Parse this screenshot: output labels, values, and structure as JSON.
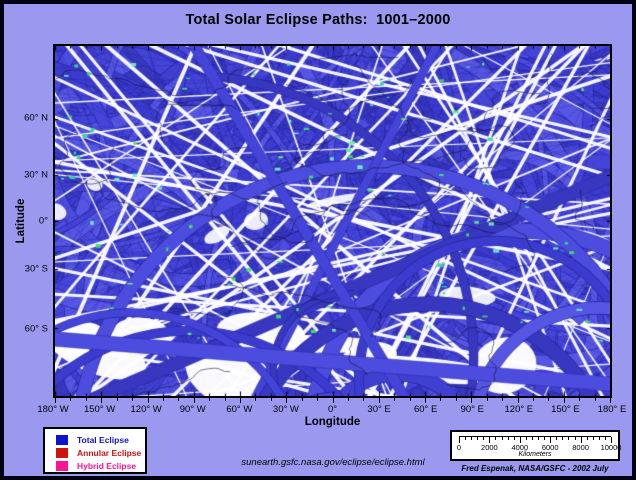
{
  "header": {
    "title": "Total Solar Eclipse Paths:  1001–2000"
  },
  "axes": {
    "x_label": "Longitude",
    "y_label": "Latitude",
    "x_ticks": [
      "180° W",
      "150° W",
      "120° W",
      "90° W",
      "60° W",
      "30° W",
      "0°",
      "30° E",
      "60° E",
      "90° E",
      "120° E",
      "150° E",
      "180° E"
    ],
    "x_minor_per_major": 3,
    "y_ticks": [
      {
        "label": "60° N",
        "pos": 0.208
      },
      {
        "label": "30° N",
        "pos": 0.369
      },
      {
        "label": "0°",
        "pos": 0.501
      },
      {
        "label": "30° S",
        "pos": 0.637
      },
      {
        "label": "60° S",
        "pos": 0.806
      }
    ]
  },
  "legend": {
    "items": [
      {
        "label": "Total Eclipse",
        "color": "#1212cc"
      },
      {
        "label": "Annular Eclipse",
        "color": "#cc1212"
      },
      {
        "label": "Hybrid Eclipse",
        "color": "#ff1493"
      }
    ]
  },
  "scalebar": {
    "tick_labels": [
      "0",
      "2000",
      "4000",
      "6000",
      "8000",
      "10000"
    ],
    "minor_per_major": 5,
    "unit": "Kilometers"
  },
  "footer": {
    "url": "sunearth.gsfc.nasa.gov/eclipse/eclipse.html",
    "credit": "Fred Espenak, NASA/GSFC - 2002 July"
  },
  "colors": {
    "page_background": "#9a99ef",
    "outer_border": "#010114",
    "map_background": "#e8e8fa",
    "path_blue": "#4444d8",
    "legend_blue": "#1212cc",
    "legend_red": "#cc1212",
    "legend_pink": "#ff1493"
  },
  "map": {
    "description": "Equirectangular world map densely covered by overlapping blue total-eclipse path bands, with white gaps, dark coastline traces and small green highlight patches",
    "render": {
      "seed": 1337,
      "background": "#e8e8fa",
      "band_palette": [
        "#4444d8",
        "#4c4cde",
        "#3b3bce",
        "#5656e4",
        "#3737c0",
        "#4040d0"
      ],
      "edge_color": "#2424a0",
      "coast_color": "#14143a",
      "white": "#ffffff",
      "speck_color": "#1d1d7a",
      "green_palette": [
        "#3fe468",
        "#58f288",
        "#37d89c",
        "#6ceec9"
      ],
      "straight_bands": 250,
      "top_dense_bands": 30,
      "curved_bands": 85,
      "edge_lines": 150,
      "specks": 380,
      "white_slivers": 60,
      "white_patches_bottom": 9,
      "white_patches_mid": 7,
      "overlay_curves": 20,
      "coastlines": 32,
      "green_specks": 95
    }
  }
}
